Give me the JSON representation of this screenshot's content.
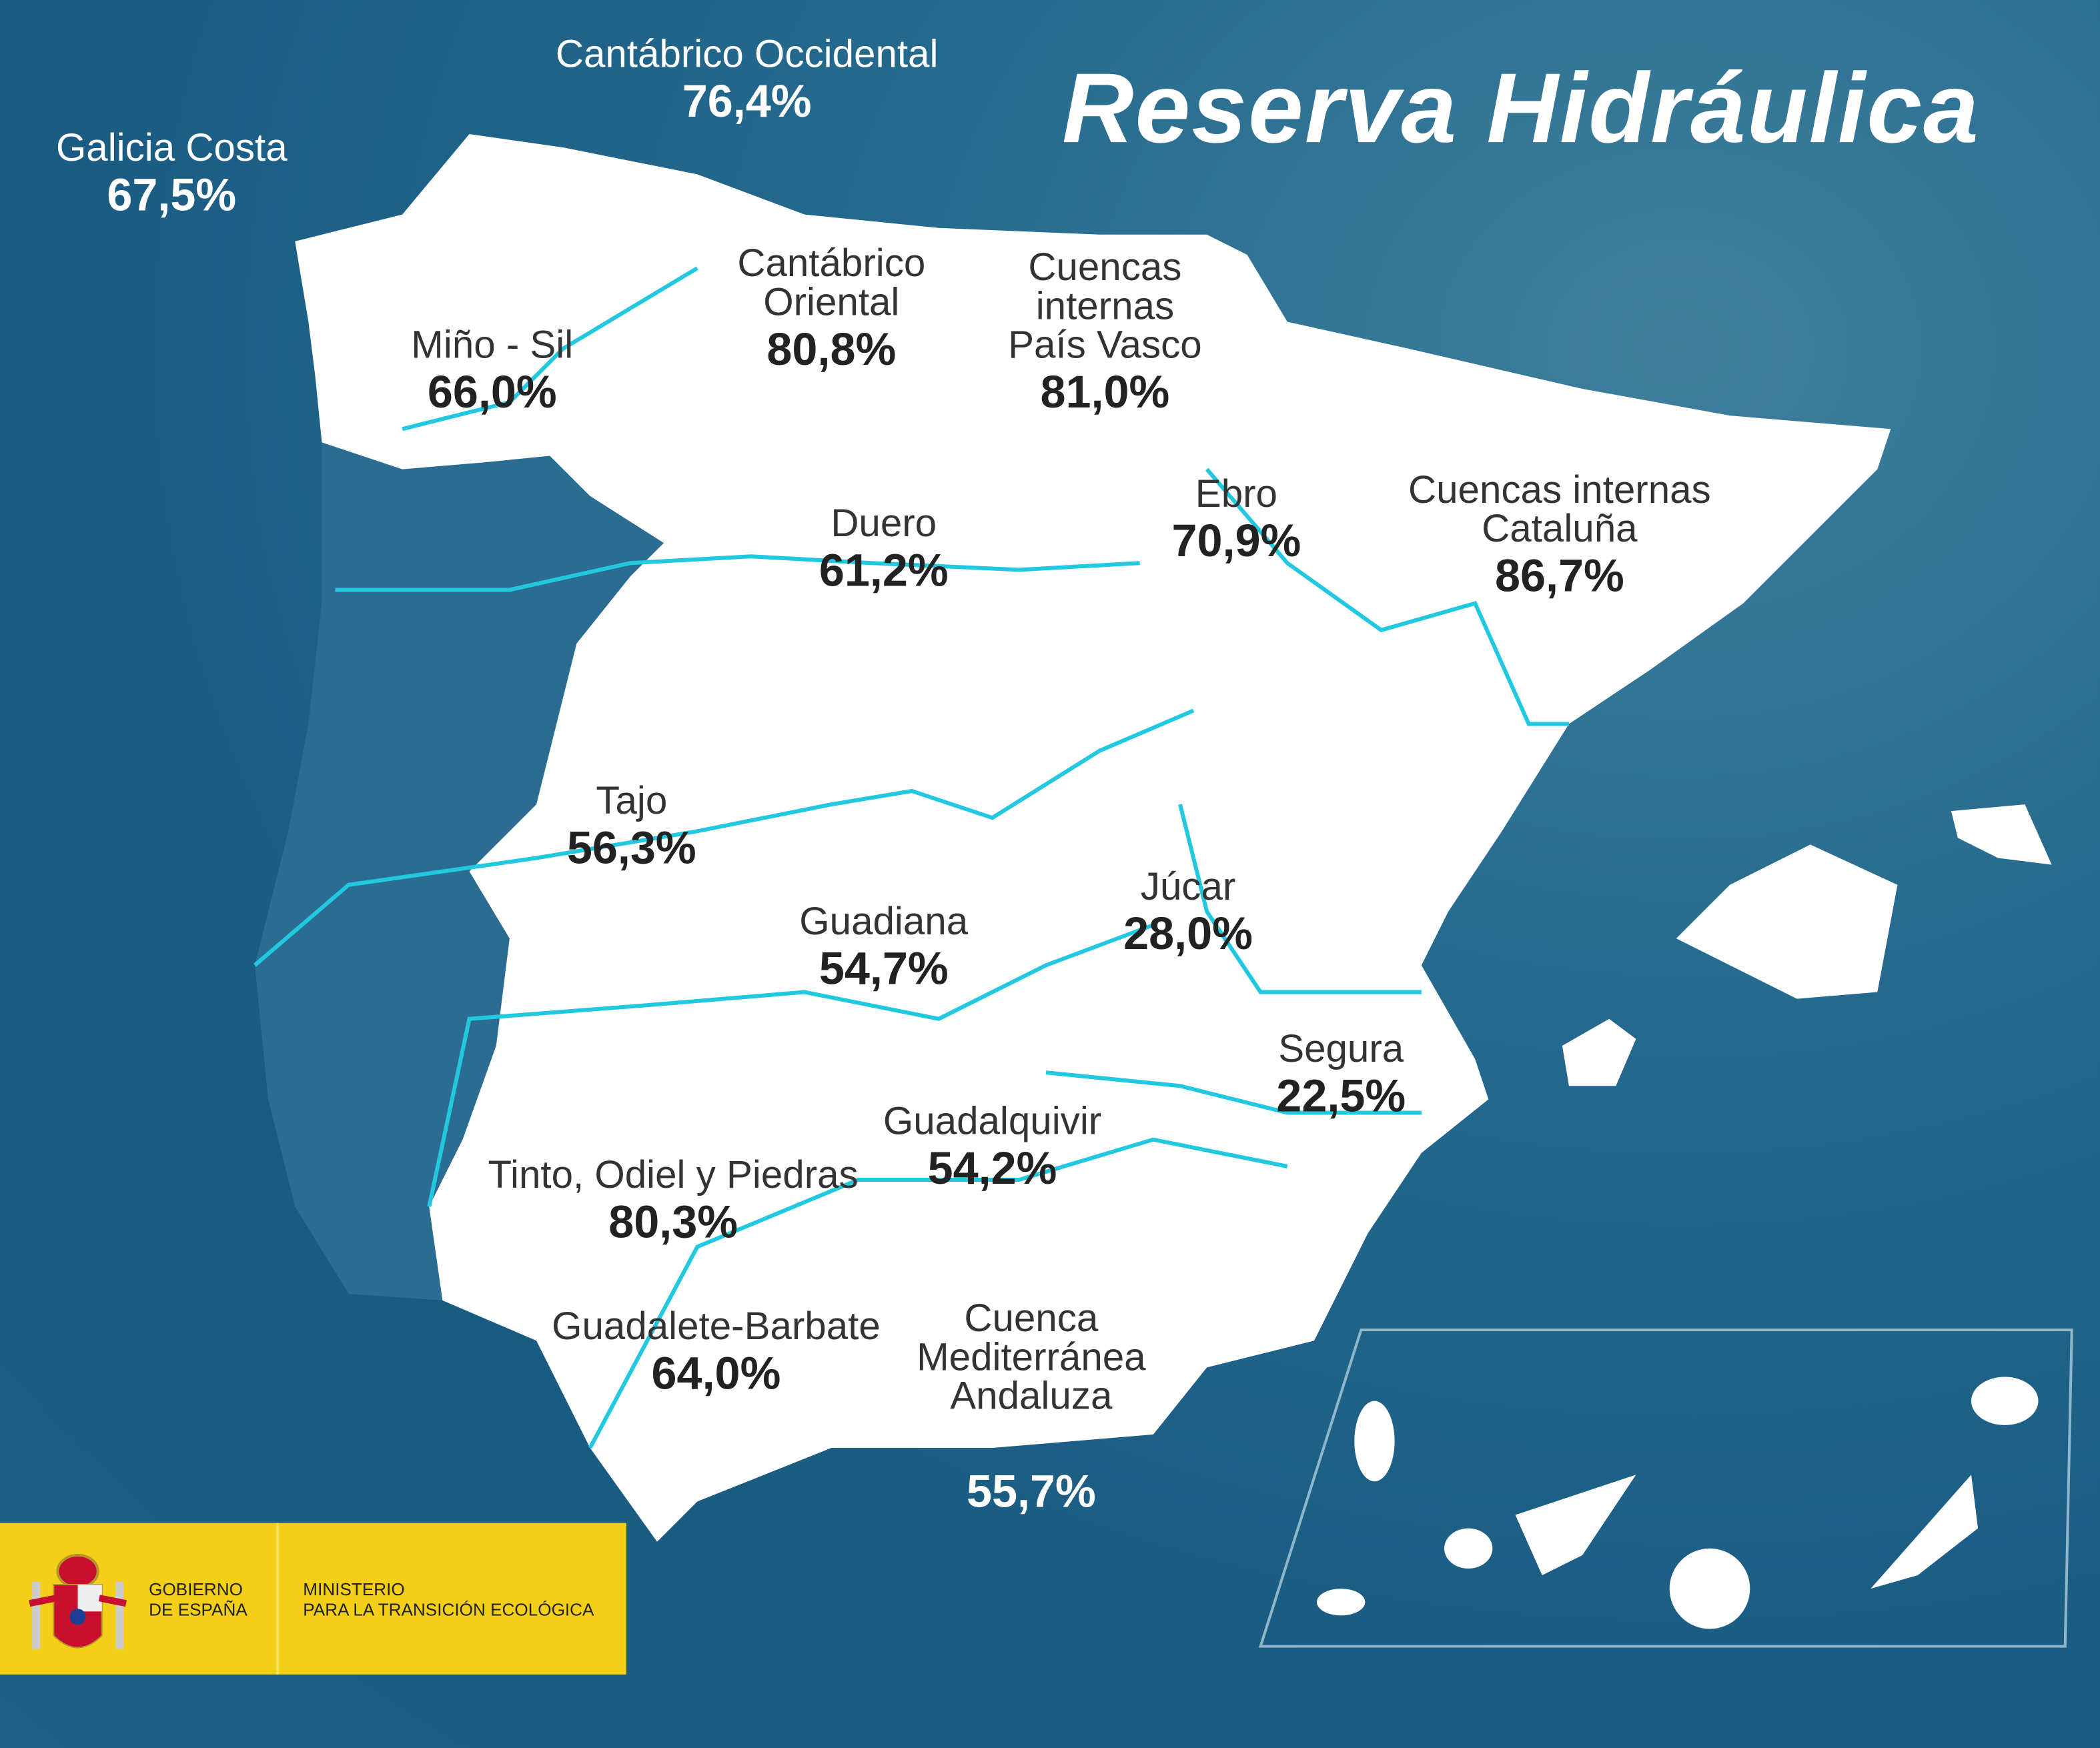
{
  "title": "Reserva Hidráulica",
  "regions": [
    {
      "name": "Galicia Costa",
      "value": "67,5%"
    },
    {
      "name": "Cantábrico Occidental",
      "value": "76,4%"
    },
    {
      "name": "Miño - Sil",
      "value": "66,0%"
    },
    {
      "name": "Cantábrico\nOriental",
      "value": "80,8%"
    },
    {
      "name": "Cuencas\ninternas\nPaís Vasco",
      "value": "81,0%"
    },
    {
      "name": "Duero",
      "value": "61,2%"
    },
    {
      "name": "Ebro",
      "value": "70,9%"
    },
    {
      "name": "Cuencas internas\nCataluña",
      "value": "86,7%"
    },
    {
      "name": "Tajo",
      "value": "56,3%"
    },
    {
      "name": "Guadiana",
      "value": "54,7%"
    },
    {
      "name": "Júcar",
      "value": "28,0%"
    },
    {
      "name": "Segura",
      "value": "22,5%"
    },
    {
      "name": "Guadalquivir",
      "value": "54,2%"
    },
    {
      "name": "Tinto, Odiel y Piedras",
      "value": "80,3%"
    },
    {
      "name": "Guadalete-Barbate",
      "value": "64,0%"
    },
    {
      "name": "Cuenca\nMediterránea\nAndaluza",
      "value": "55,7%"
    }
  ],
  "logo": {
    "gov": "GOBIERNO\nDE ESPAÑA",
    "ministry": "MINISTERIO\nPARA LA TRANSICIÓN ECOLÓGICA"
  },
  "colors": {
    "sea": "#1d5f86",
    "land": "#ffffff",
    "rivers": "#22c8e0",
    "logo_bg": "#f4cf17"
  }
}
